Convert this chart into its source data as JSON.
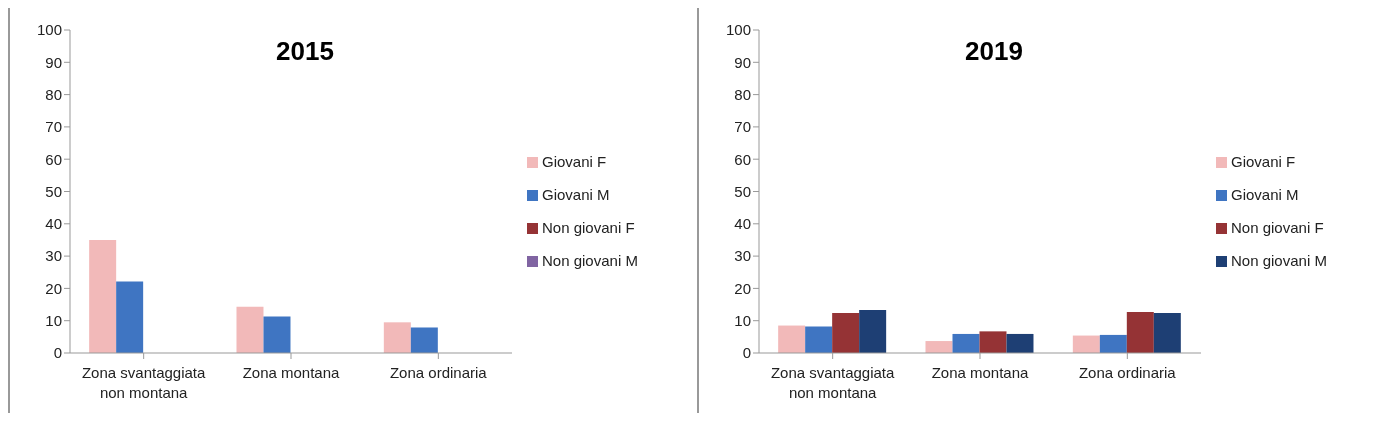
{
  "chart_data": [
    {
      "type": "bar",
      "title": "2015",
      "categories": [
        "Zona svantaggiata non montana",
        "Zona montana",
        "Zona ordinaria"
      ],
      "series": [
        {
          "name": "Giovani F",
          "color": "#f2b9b9",
          "values": [
            35,
            14.3,
            9.5
          ]
        },
        {
          "name": "Giovani M",
          "color": "#3f75c2",
          "values": [
            22.1,
            11.3,
            7.9
          ]
        },
        {
          "name": "Non giovani F",
          "color": "#953335",
          "values": [
            null,
            null,
            null
          ]
        },
        {
          "name": "Non giovani M",
          "color": "#8064a2",
          "values": [
            null,
            null,
            null
          ]
        }
      ],
      "ylim": [
        0,
        100
      ],
      "yticks": [
        0,
        10,
        20,
        30,
        40,
        50,
        60,
        70,
        80,
        90,
        100
      ],
      "grid": false,
      "legend": "right"
    },
    {
      "type": "bar",
      "title": "2019",
      "categories": [
        "Zona svantaggiata non montana",
        "Zona montana",
        "Zona ordinaria"
      ],
      "series": [
        {
          "name": "Giovani F",
          "color": "#f2b9b9",
          "values": [
            8.5,
            3.7,
            5.4
          ]
        },
        {
          "name": "Giovani M",
          "color": "#3f75c2",
          "values": [
            8.2,
            5.9,
            5.6
          ]
        },
        {
          "name": "Non giovani F",
          "color": "#953335",
          "values": [
            12.4,
            6.7,
            12.7
          ]
        },
        {
          "name": "Non giovani M",
          "color": "#1e3f74",
          "values": [
            13.3,
            5.9,
            12.4
          ]
        }
      ],
      "ylim": [
        0,
        100
      ],
      "yticks": [
        0,
        10,
        20,
        30,
        40,
        50,
        60,
        70,
        80,
        90,
        100
      ],
      "grid": false,
      "legend": "right"
    }
  ]
}
